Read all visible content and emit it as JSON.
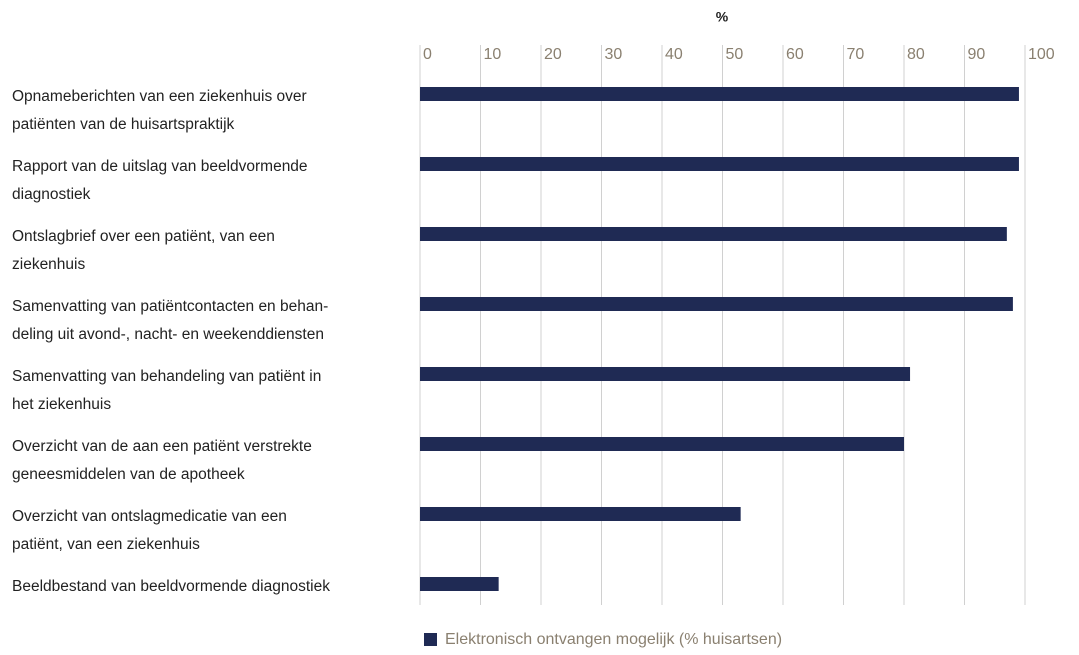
{
  "chart_data": {
    "type": "bar",
    "orientation": "horizontal",
    "x_label": "%",
    "categories": [
      [
        "Opnameberichten van een ziekenhuis over",
        "patiënten van de huisartspraktijk"
      ],
      [
        "Rapport van de uitslag van beeldvormende",
        "diagnostiek"
      ],
      [
        "Ontslagbrief over een patiënt, van een",
        "ziekenhuis"
      ],
      [
        "Samenvatting van patiëntcontacten en behan-",
        "deling uit avond-, nacht- en weekenddiensten"
      ],
      [
        "Samenvatting van behandeling van patiënt in",
        "het ziekenhuis"
      ],
      [
        "Overzicht van de aan een patiënt verstrekte",
        "geneesmiddelen van de apotheek"
      ],
      [
        "Overzicht van ontslagmedicatie van een",
        "patiënt, van een ziekenhuis"
      ],
      [
        "Beeldbestand van beeldvormende diagnostiek"
      ]
    ],
    "series": [
      {
        "name": "Elektronisch ontvangen mogelijk (% huisartsen)",
        "color": "#1f2a54",
        "values": [
          99,
          99,
          97,
          98,
          81,
          80,
          53,
          13
        ]
      }
    ],
    "xlim": [
      0,
      100
    ],
    "xticks": [
      0,
      10,
      20,
      30,
      40,
      50,
      60,
      70,
      80,
      90,
      100
    ],
    "grid": true,
    "legend": "bottom"
  }
}
